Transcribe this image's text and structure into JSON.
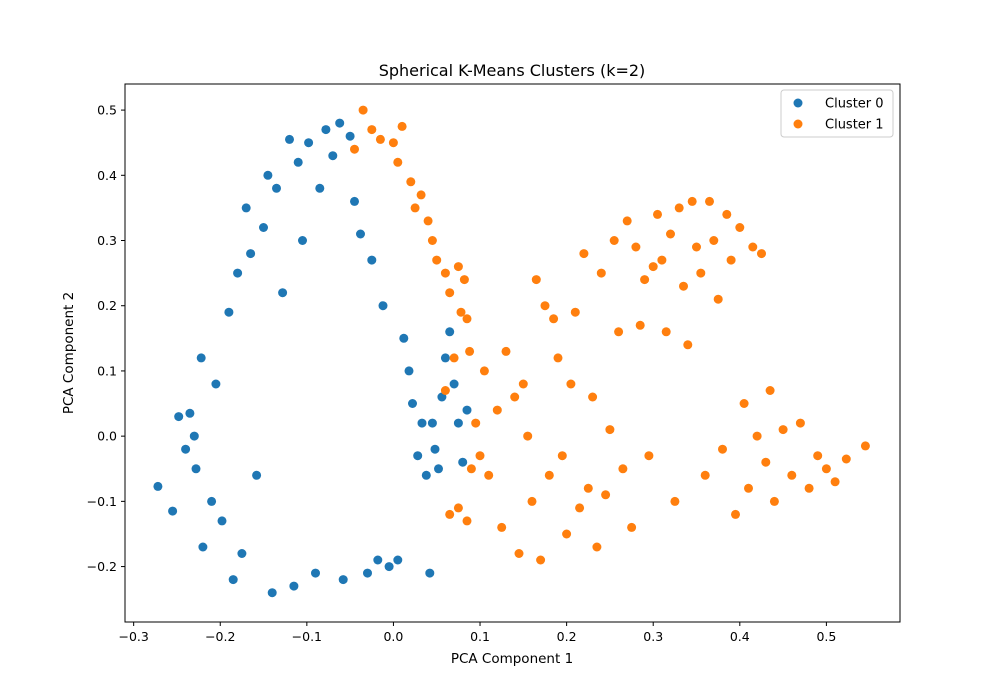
{
  "chart_data": {
    "type": "scatter",
    "title": "Spherical K-Means Clusters (k=2)",
    "xlabel": "PCA Component 1",
    "ylabel": "PCA Component 2",
    "xlim": [
      -0.31,
      0.585
    ],
    "ylim": [
      -0.285,
      0.54
    ],
    "xticks": [
      -0.3,
      -0.2,
      -0.1,
      0.0,
      0.1,
      0.2,
      0.3,
      0.4,
      0.5
    ],
    "xtick_labels": [
      "−0.3",
      "−0.2",
      "−0.1",
      "0.0",
      "0.1",
      "0.2",
      "0.3",
      "0.4",
      "0.5"
    ],
    "yticks": [
      -0.2,
      -0.1,
      0.0,
      0.1,
      0.2,
      0.3,
      0.4,
      0.5
    ],
    "ytick_labels": [
      "−0.2",
      "−0.1",
      "0.0",
      "0.1",
      "0.2",
      "0.3",
      "0.4",
      "0.5"
    ],
    "grid": false,
    "legend_position": "top-right",
    "series": [
      {
        "name": "Cluster 0",
        "color": "#1f77b4",
        "points": [
          [
            -0.272,
            -0.077
          ],
          [
            -0.255,
            -0.115
          ],
          [
            -0.248,
            0.03
          ],
          [
            -0.24,
            -0.02
          ],
          [
            -0.235,
            0.035
          ],
          [
            -0.23,
            0.0
          ],
          [
            -0.228,
            -0.05
          ],
          [
            -0.222,
            0.12
          ],
          [
            -0.22,
            -0.17
          ],
          [
            -0.21,
            -0.1
          ],
          [
            -0.205,
            0.08
          ],
          [
            -0.198,
            -0.13
          ],
          [
            -0.19,
            0.19
          ],
          [
            -0.185,
            -0.22
          ],
          [
            -0.18,
            0.25
          ],
          [
            -0.175,
            -0.18
          ],
          [
            -0.17,
            0.35
          ],
          [
            -0.165,
            0.28
          ],
          [
            -0.158,
            -0.06
          ],
          [
            -0.15,
            0.32
          ],
          [
            -0.145,
            0.4
          ],
          [
            -0.14,
            -0.24
          ],
          [
            -0.135,
            0.38
          ],
          [
            -0.128,
            0.22
          ],
          [
            -0.12,
            0.455
          ],
          [
            -0.115,
            -0.23
          ],
          [
            -0.11,
            0.42
          ],
          [
            -0.105,
            0.3
          ],
          [
            -0.098,
            0.45
          ],
          [
            -0.09,
            -0.21
          ],
          [
            -0.085,
            0.38
          ],
          [
            -0.078,
            0.47
          ],
          [
            -0.07,
            0.43
          ],
          [
            -0.062,
            0.48
          ],
          [
            -0.058,
            -0.22
          ],
          [
            -0.05,
            0.46
          ],
          [
            -0.045,
            0.36
          ],
          [
            -0.038,
            0.31
          ],
          [
            -0.03,
            -0.21
          ],
          [
            -0.025,
            0.27
          ],
          [
            -0.018,
            -0.19
          ],
          [
            -0.012,
            0.2
          ],
          [
            -0.005,
            -0.2
          ],
          [
            0.005,
            -0.19
          ],
          [
            0.012,
            0.15
          ],
          [
            0.018,
            0.1
          ],
          [
            0.022,
            0.05
          ],
          [
            0.028,
            -0.03
          ],
          [
            0.033,
            0.02
          ],
          [
            0.038,
            -0.06
          ],
          [
            0.042,
            -0.21
          ],
          [
            0.045,
            0.02
          ],
          [
            0.048,
            -0.02
          ],
          [
            0.052,
            -0.05
          ],
          [
            0.056,
            0.06
          ],
          [
            0.06,
            0.12
          ],
          [
            0.065,
            0.16
          ],
          [
            0.07,
            0.08
          ],
          [
            0.075,
            0.02
          ],
          [
            0.08,
            -0.04
          ],
          [
            0.085,
            0.04
          ]
        ]
      },
      {
        "name": "Cluster 1",
        "color": "#ff7f0e",
        "points": [
          [
            -0.035,
            0.5
          ],
          [
            -0.025,
            0.47
          ],
          [
            -0.015,
            0.455
          ],
          [
            0.0,
            0.45
          ],
          [
            0.005,
            0.42
          ],
          [
            0.01,
            0.475
          ],
          [
            -0.045,
            0.44
          ],
          [
            0.02,
            0.39
          ],
          [
            0.025,
            0.35
          ],
          [
            0.032,
            0.37
          ],
          [
            0.04,
            0.33
          ],
          [
            0.045,
            0.3
          ],
          [
            0.05,
            0.27
          ],
          [
            0.06,
            0.25
          ],
          [
            0.065,
            0.22
          ],
          [
            0.075,
            0.26
          ],
          [
            0.078,
            0.19
          ],
          [
            0.082,
            0.24
          ],
          [
            0.085,
            0.18
          ],
          [
            0.088,
            0.13
          ],
          [
            0.07,
            0.12
          ],
          [
            0.06,
            0.07
          ],
          [
            0.095,
            0.02
          ],
          [
            0.1,
            -0.03
          ],
          [
            0.065,
            -0.12
          ],
          [
            0.075,
            -0.11
          ],
          [
            0.085,
            -0.13
          ],
          [
            0.09,
            -0.05
          ],
          [
            0.105,
            0.1
          ],
          [
            0.11,
            -0.06
          ],
          [
            0.12,
            0.04
          ],
          [
            0.125,
            -0.14
          ],
          [
            0.13,
            0.13
          ],
          [
            0.14,
            0.06
          ],
          [
            0.145,
            -0.18
          ],
          [
            0.15,
            0.08
          ],
          [
            0.155,
            0.0
          ],
          [
            0.16,
            -0.1
          ],
          [
            0.165,
            0.24
          ],
          [
            0.17,
            -0.19
          ],
          [
            0.175,
            0.2
          ],
          [
            0.18,
            -0.06
          ],
          [
            0.185,
            0.18
          ],
          [
            0.19,
            0.12
          ],
          [
            0.195,
            -0.03
          ],
          [
            0.2,
            -0.15
          ],
          [
            0.205,
            0.08
          ],
          [
            0.21,
            0.19
          ],
          [
            0.215,
            -0.11
          ],
          [
            0.22,
            0.28
          ],
          [
            0.225,
            -0.08
          ],
          [
            0.23,
            0.06
          ],
          [
            0.235,
            -0.17
          ],
          [
            0.24,
            0.25
          ],
          [
            0.245,
            -0.09
          ],
          [
            0.25,
            0.01
          ],
          [
            0.255,
            0.3
          ],
          [
            0.26,
            0.16
          ],
          [
            0.265,
            -0.05
          ],
          [
            0.27,
            0.33
          ],
          [
            0.275,
            -0.14
          ],
          [
            0.28,
            0.29
          ],
          [
            0.285,
            0.17
          ],
          [
            0.29,
            0.24
          ],
          [
            0.295,
            -0.03
          ],
          [
            0.3,
            0.26
          ],
          [
            0.305,
            0.34
          ],
          [
            0.31,
            0.27
          ],
          [
            0.315,
            0.16
          ],
          [
            0.32,
            0.31
          ],
          [
            0.325,
            -0.1
          ],
          [
            0.33,
            0.35
          ],
          [
            0.335,
            0.23
          ],
          [
            0.34,
            0.14
          ],
          [
            0.345,
            0.36
          ],
          [
            0.35,
            0.29
          ],
          [
            0.355,
            0.25
          ],
          [
            0.36,
            -0.06
          ],
          [
            0.365,
            0.36
          ],
          [
            0.37,
            0.3
          ],
          [
            0.375,
            0.21
          ],
          [
            0.38,
            -0.02
          ],
          [
            0.385,
            0.34
          ],
          [
            0.39,
            0.27
          ],
          [
            0.395,
            -0.12
          ],
          [
            0.4,
            0.32
          ],
          [
            0.405,
            0.05
          ],
          [
            0.41,
            -0.08
          ],
          [
            0.415,
            0.29
          ],
          [
            0.42,
            0.0
          ],
          [
            0.425,
            0.28
          ],
          [
            0.43,
            -0.04
          ],
          [
            0.435,
            0.07
          ],
          [
            0.44,
            -0.1
          ],
          [
            0.45,
            0.01
          ],
          [
            0.46,
            -0.06
          ],
          [
            0.47,
            0.02
          ],
          [
            0.48,
            -0.08
          ],
          [
            0.49,
            -0.03
          ],
          [
            0.5,
            -0.05
          ],
          [
            0.51,
            -0.07
          ],
          [
            0.523,
            -0.035
          ],
          [
            0.545,
            -0.015
          ]
        ]
      }
    ]
  }
}
